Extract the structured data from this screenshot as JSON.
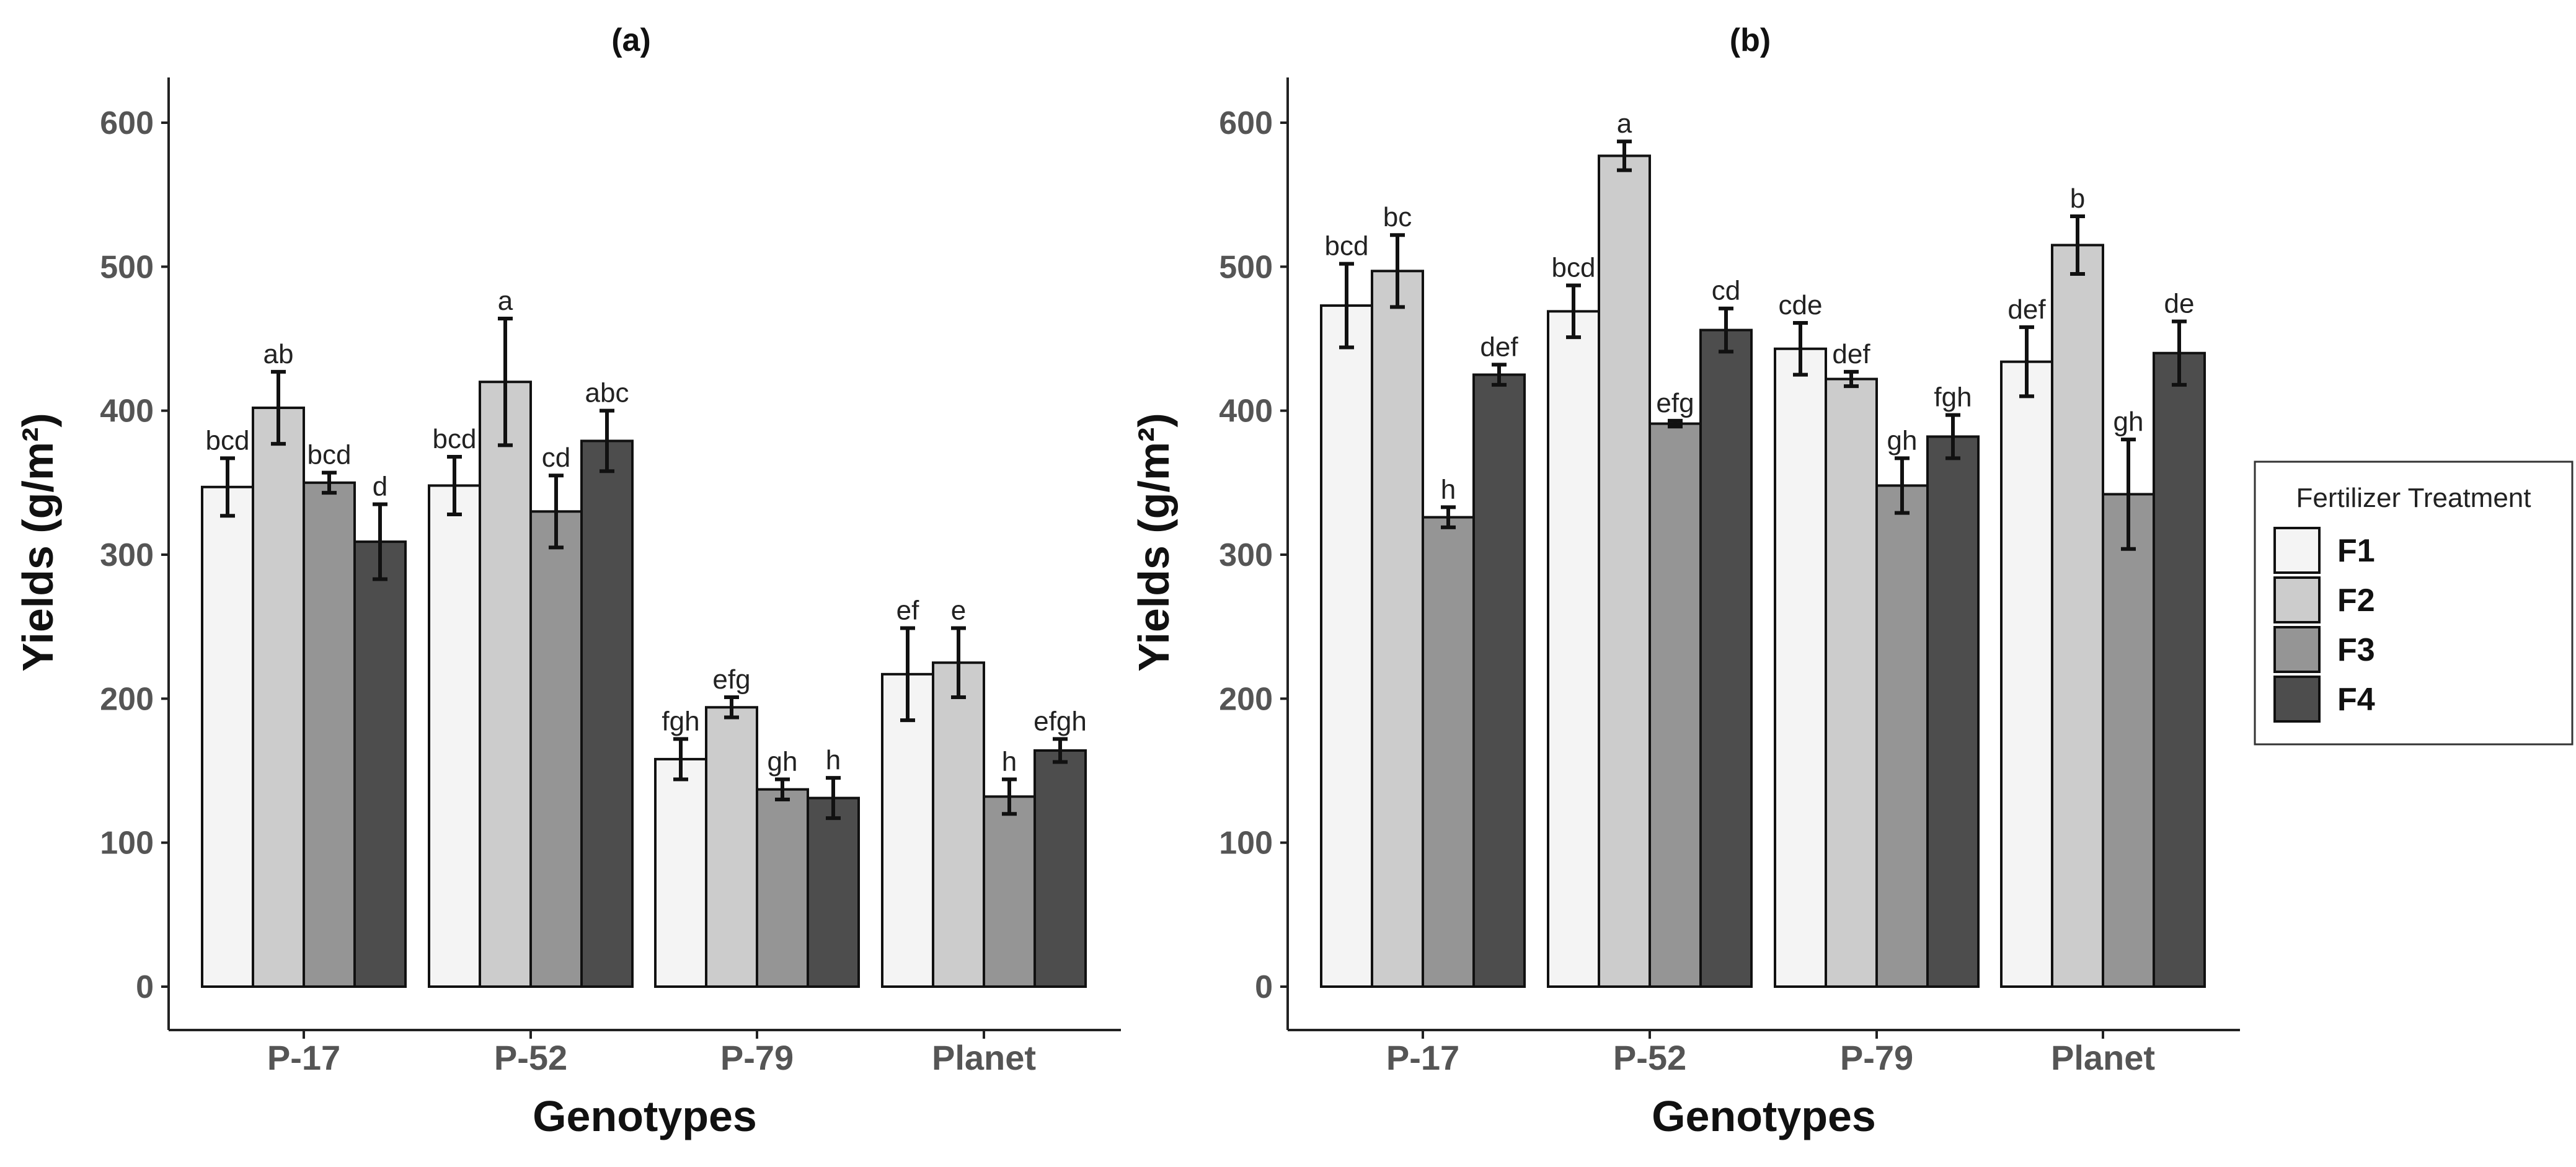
{
  "chart_data": [
    {
      "type": "bar",
      "title": "(a)",
      "xlabel": "Genotypes",
      "ylabel": "Yields (g/m²)",
      "ylim": [
        0,
        600
      ],
      "yticks": [
        0,
        100,
        200,
        300,
        400,
        500,
        600
      ],
      "categories": [
        "P-17",
        "P-52",
        "P-79",
        "Planet"
      ],
      "series": [
        {
          "name": "F1",
          "values": [
            347,
            348,
            158,
            217
          ],
          "errors": [
            20,
            20,
            14,
            32
          ],
          "labels": [
            "bcd",
            "bcd",
            "fgh",
            "ef"
          ]
        },
        {
          "name": "F2",
          "values": [
            402,
            420,
            194,
            225
          ],
          "errors": [
            25,
            44,
            7,
            24
          ],
          "labels": [
            "ab",
            "a",
            "efg",
            "e"
          ]
        },
        {
          "name": "F3",
          "values": [
            350,
            330,
            137,
            132
          ],
          "errors": [
            7,
            25,
            7,
            12
          ],
          "labels": [
            "bcd",
            "cd",
            "gh",
            "h"
          ]
        },
        {
          "name": "F4",
          "values": [
            309,
            379,
            131,
            164
          ],
          "errors": [
            26,
            21,
            14,
            8
          ],
          "labels": [
            "d",
            "abc",
            "h",
            "efgh"
          ]
        }
      ]
    },
    {
      "type": "bar",
      "title": "(b)",
      "xlabel": "Genotypes",
      "ylabel": "Yields (g/m²)",
      "ylim": [
        0,
        600
      ],
      "yticks": [
        0,
        100,
        200,
        300,
        400,
        500,
        600
      ],
      "categories": [
        "P-17",
        "P-52",
        "P-79",
        "Planet"
      ],
      "series": [
        {
          "name": "F1",
          "values": [
            473,
            469,
            443,
            434
          ],
          "errors": [
            29,
            18,
            18,
            24
          ],
          "labels": [
            "bcd",
            "bcd",
            "cde",
            "def"
          ]
        },
        {
          "name": "F2",
          "values": [
            497,
            577,
            422,
            515
          ],
          "errors": [
            25,
            10,
            5,
            20
          ],
          "labels": [
            "bc",
            "a",
            "def",
            "b"
          ]
        },
        {
          "name": "F3",
          "values": [
            326,
            391,
            348,
            342
          ],
          "errors": [
            7,
            2,
            19,
            38
          ],
          "labels": [
            "h",
            "efg",
            "gh",
            "gh"
          ]
        },
        {
          "name": "F4",
          "values": [
            425,
            456,
            382,
            440
          ],
          "errors": [
            7,
            15,
            15,
            22
          ],
          "labels": [
            "def",
            "cd",
            "fgh",
            "de"
          ]
        }
      ]
    }
  ],
  "legend": {
    "title": "Fertilizer Treatment",
    "items": [
      "F1",
      "F2",
      "F3",
      "F4"
    ]
  },
  "colors": {
    "F1": "#f4f4f4",
    "F2": "#cccccc",
    "F3": "#959595",
    "F4": "#4d4d4d"
  }
}
